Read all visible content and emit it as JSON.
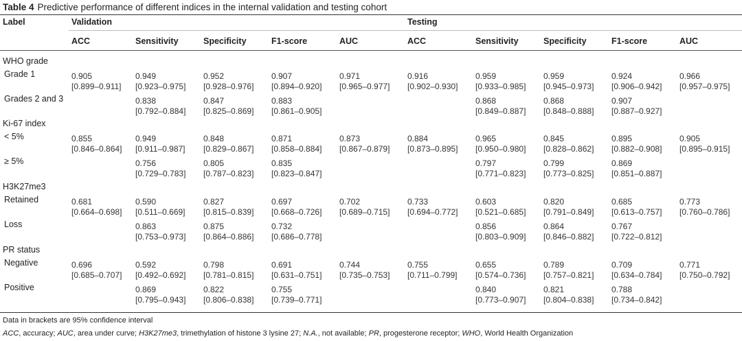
{
  "caption": {
    "label": "Table 4",
    "text": "Predictive performance of different indices in the internal validation and testing cohort"
  },
  "header": {
    "label": "Label",
    "validation": "Validation",
    "testing": "Testing",
    "columns": [
      "ACC",
      "Sensitivity",
      "Specificity",
      "F1-score",
      "AUC",
      "ACC",
      "Sensitivity",
      "Specificity",
      "F1-score",
      "AUC"
    ]
  },
  "groups": [
    {
      "label": "WHO grade",
      "rows": [
        {
          "label": "Grade 1",
          "cells": [
            {
              "v": "0.905",
              "ci": "[0.899–0.911]"
            },
            {
              "v": "0.949",
              "ci": "[0.923–0.975]"
            },
            {
              "v": "0.952",
              "ci": "[0.928–0.976]"
            },
            {
              "v": "0.907",
              "ci": "[0.894–0.920]"
            },
            {
              "v": "0.971",
              "ci": "[0.965–0.977]"
            },
            {
              "v": "0.916",
              "ci": "[0.902–0.930]"
            },
            {
              "v": "0.959",
              "ci": "[0.933–0.985]"
            },
            {
              "v": "0.959",
              "ci": "[0.945–0.973]"
            },
            {
              "v": "0.924",
              "ci": "[0.906–0.942]"
            },
            {
              "v": "0.966",
              "ci": "[0.957–0.975]"
            }
          ]
        },
        {
          "label": "Grades 2 and 3",
          "cells": [
            {
              "v": "",
              "ci": ""
            },
            {
              "v": "0.838",
              "ci": "[0.792–0.884]"
            },
            {
              "v": "0.847",
              "ci": "[0.825–0.869]"
            },
            {
              "v": "0.883",
              "ci": "[0.861–0.905]"
            },
            {
              "v": "",
              "ci": ""
            },
            {
              "v": "",
              "ci": ""
            },
            {
              "v": "0.868",
              "ci": "[0.849–0.887]"
            },
            {
              "v": "0.868",
              "ci": "[0.848–0.888]"
            },
            {
              "v": "0.907",
              "ci": "[0.887–0.927]"
            },
            {
              "v": "",
              "ci": ""
            }
          ]
        }
      ]
    },
    {
      "label": "Ki-67 index",
      "rows": [
        {
          "label": "< 5%",
          "cells": [
            {
              "v": "0.855",
              "ci": "[0.846–0.864]"
            },
            {
              "v": "0.949",
              "ci": "[0.911–0.987]"
            },
            {
              "v": "0.848",
              "ci": "[0.829–0.867]"
            },
            {
              "v": "0.871",
              "ci": "[0.858–0.884]"
            },
            {
              "v": "0.873",
              "ci": "[0.867–0.879]"
            },
            {
              "v": "0.884",
              "ci": "[0.873–0.895]"
            },
            {
              "v": "0.965",
              "ci": "[0.950–0.980]"
            },
            {
              "v": "0.845",
              "ci": "[0.828–0.862]"
            },
            {
              "v": "0.895",
              "ci": "[0.882–0.908]"
            },
            {
              "v": "0.905",
              "ci": "[0.895–0.915]"
            }
          ]
        },
        {
          "label": "≥ 5%",
          "cells": [
            {
              "v": "",
              "ci": ""
            },
            {
              "v": "0.756",
              "ci": "[0.729–0.783]"
            },
            {
              "v": "0.805",
              "ci": "[0.787–0.823]"
            },
            {
              "v": "0.835",
              "ci": "[0.823–0.847]"
            },
            {
              "v": "",
              "ci": ""
            },
            {
              "v": "",
              "ci": ""
            },
            {
              "v": "0.797",
              "ci": "[0.771–0.823]"
            },
            {
              "v": "0.799",
              "ci": "[0.773–0.825]"
            },
            {
              "v": "0.869",
              "ci": "[0.851–0.887]"
            },
            {
              "v": "",
              "ci": ""
            }
          ]
        }
      ]
    },
    {
      "label": "H3K27me3",
      "rows": [
        {
          "label": "Retained",
          "cells": [
            {
              "v": "0.681",
              "ci": "[0.664–0.698]"
            },
            {
              "v": "0.590",
              "ci": "[0.511–0.669]"
            },
            {
              "v": "0.827",
              "ci": "[0.815–0.839]"
            },
            {
              "v": "0.697",
              "ci": "[0.668–0.726]"
            },
            {
              "v": "0.702",
              "ci": "[0.689–0.715]"
            },
            {
              "v": "0.733",
              "ci": "[0.694–0.772]"
            },
            {
              "v": "0.603",
              "ci": "[0.521–0.685]"
            },
            {
              "v": "0.820",
              "ci": "[0.791–0.849]"
            },
            {
              "v": "0.685",
              "ci": "[0.613–0.757]"
            },
            {
              "v": "0.773",
              "ci": "[0.760–0.786]"
            }
          ]
        },
        {
          "label": "Loss",
          "cells": [
            {
              "v": "",
              "ci": ""
            },
            {
              "v": "0.863",
              "ci": "[0.753–0.973]"
            },
            {
              "v": "0.875",
              "ci": "[0.864–0.886]"
            },
            {
              "v": "0.732",
              "ci": "[0.686–0.778]"
            },
            {
              "v": "",
              "ci": ""
            },
            {
              "v": "",
              "ci": ""
            },
            {
              "v": "0.856",
              "ci": "[0.803–0.909]"
            },
            {
              "v": "0.864",
              "ci": "[0.846–0.882]"
            },
            {
              "v": "0.767",
              "ci": "[0.722–0.812]"
            },
            {
              "v": "",
              "ci": ""
            }
          ]
        }
      ]
    },
    {
      "label": "PR status",
      "rows": [
        {
          "label": "Negative",
          "cells": [
            {
              "v": "0.696",
              "ci": "[0.685–0.707]"
            },
            {
              "v": "0.592",
              "ci": "[0.492–0.692]"
            },
            {
              "v": "0.798",
              "ci": "[0.781–0.815]"
            },
            {
              "v": "0.691",
              "ci": "[0.631–0.751]"
            },
            {
              "v": "0.744",
              "ci": "[0.735–0.753]"
            },
            {
              "v": "0.755",
              "ci": "[0.711–0.799]"
            },
            {
              "v": "0.655",
              "ci": "[0.574–0.736]"
            },
            {
              "v": "0.789",
              "ci": "[0.757–0.821]"
            },
            {
              "v": "0.709",
              "ci": "[0.634–0.784]"
            },
            {
              "v": "0.771",
              "ci": "[0.750–0.792]"
            }
          ]
        },
        {
          "label": "Positive",
          "cells": [
            {
              "v": "",
              "ci": ""
            },
            {
              "v": "0.869",
              "ci": "[0.795–0.943]"
            },
            {
              "v": "0.822",
              "ci": "[0.806–0.838]"
            },
            {
              "v": "0.755",
              "ci": "[0.739–0.771]"
            },
            {
              "v": "",
              "ci": ""
            },
            {
              "v": "",
              "ci": ""
            },
            {
              "v": "0.840",
              "ci": "[0.773–0.907]"
            },
            {
              "v": "0.821",
              "ci": "[0.804–0.838]"
            },
            {
              "v": "0.788",
              "ci": "[0.734–0.842]"
            },
            {
              "v": "",
              "ci": ""
            }
          ]
        }
      ]
    }
  ],
  "footnotes": {
    "note1": "Data in brackets are 95% confidence interval",
    "note2_parts": [
      {
        "t": "ACC",
        "i": true
      },
      {
        "t": ", accuracy; ",
        "i": false
      },
      {
        "t": "AUC",
        "i": true
      },
      {
        "t": ", area under curve; ",
        "i": false
      },
      {
        "t": "H3K27me3",
        "i": true
      },
      {
        "t": ", trimethylation of histone 3 lysine 27; ",
        "i": false
      },
      {
        "t": "N.A.",
        "i": true
      },
      {
        "t": ", not available; ",
        "i": false
      },
      {
        "t": "PR",
        "i": true
      },
      {
        "t": ", progesterone receptor; ",
        "i": false
      },
      {
        "t": "WHO",
        "i": true
      },
      {
        "t": ", World Health Organization",
        "i": false
      }
    ]
  }
}
